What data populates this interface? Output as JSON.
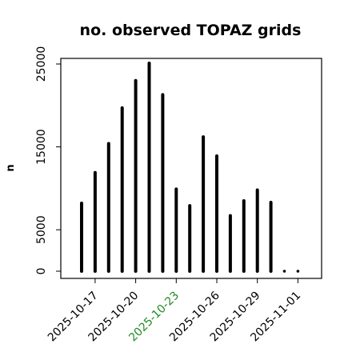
{
  "chart_data": {
    "type": "bar",
    "title": "no. observed TOPAZ grids",
    "ylabel": "n",
    "xlabel": "",
    "ylim": [
      0,
      26000
    ],
    "yticks": [
      0,
      5000,
      15000,
      25000
    ],
    "x": [
      "2025-10-16",
      "2025-10-17",
      "2025-10-18",
      "2025-10-19",
      "2025-10-20",
      "2025-10-21",
      "2025-10-22",
      "2025-10-23",
      "2025-10-24",
      "2025-10-25",
      "2025-10-26",
      "2025-10-27",
      "2025-10-28",
      "2025-10-29",
      "2025-10-30",
      "2025-10-31",
      "2025-11-01"
    ],
    "values": [
      8200,
      11900,
      15400,
      19700,
      23000,
      25100,
      21300,
      9900,
      7900,
      16200,
      13900,
      6700,
      8500,
      9800,
      8300,
      0,
      0
    ],
    "xtick_labels": [
      {
        "label": "2025-10-17",
        "date": "2025-10-17",
        "color": "#000000"
      },
      {
        "label": "2025-10-20",
        "date": "2025-10-20",
        "color": "#000000"
      },
      {
        "label": "2025-10-23",
        "date": "2025-10-23",
        "color": "#228B22"
      },
      {
        "label": "2025-10-26",
        "date": "2025-10-26",
        "color": "#000000"
      },
      {
        "label": "2025-10-29",
        "date": "2025-10-29",
        "color": "#000000"
      },
      {
        "label": "2025-11-01",
        "date": "2025-11-01",
        "color": "#000000"
      }
    ],
    "bar_color": "#000000",
    "grid": false,
    "legend": "none"
  }
}
